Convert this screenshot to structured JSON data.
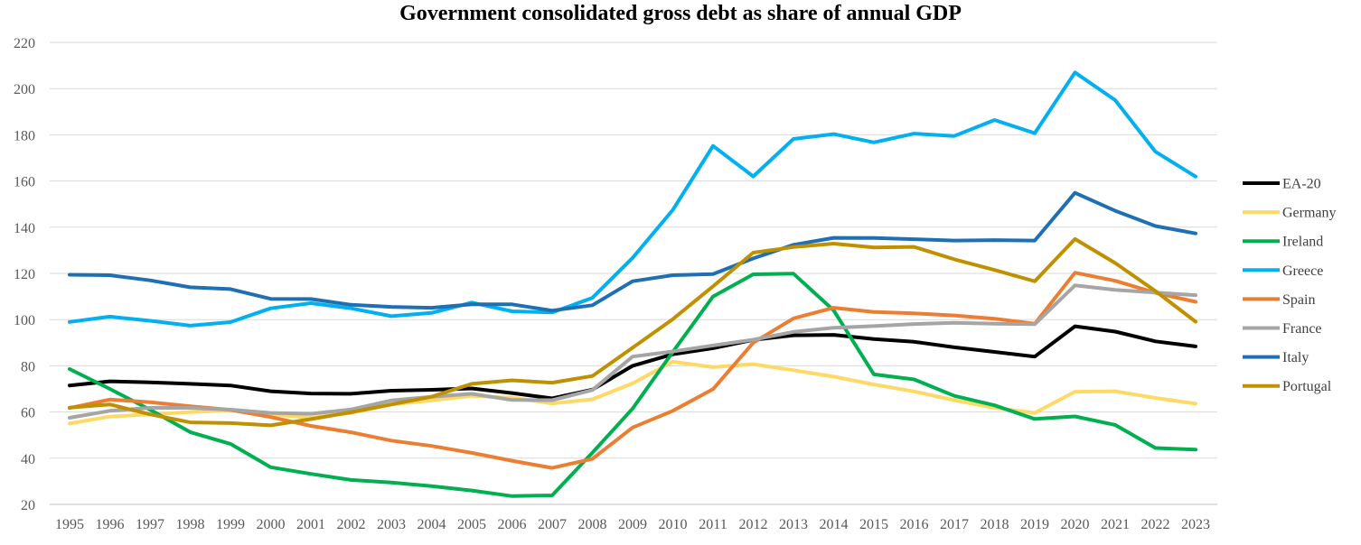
{
  "chart_data": {
    "type": "line",
    "title": "Government consolidated gross debt as share of annual GDP",
    "xlabel": "",
    "ylabel": "",
    "ylim": [
      20,
      220
    ],
    "yticks": [
      20,
      40,
      60,
      80,
      100,
      120,
      140,
      160,
      180,
      200,
      220
    ],
    "grid": true,
    "legend_position": "right",
    "x": [
      "1995",
      "1996",
      "1997",
      "1998",
      "1999",
      "2000",
      "2001",
      "2002",
      "2003",
      "2004",
      "2005",
      "2006",
      "2007",
      "2008",
      "2009",
      "2010",
      "2011",
      "2012",
      "2013",
      "2014",
      "2015",
      "2016",
      "2017",
      "2018",
      "2019",
      "2020",
      "2021",
      "2022",
      "2023"
    ],
    "series": [
      {
        "name": "EA-20",
        "color": "#000000",
        "values": [
          71.5,
          73.3,
          72.8,
          72.2,
          71.5,
          69.0,
          68.0,
          67.9,
          69.2,
          69.6,
          70.2,
          68.2,
          65.9,
          69.7,
          80.0,
          85.0,
          87.6,
          91.2,
          93.2,
          93.4,
          91.6,
          90.4,
          88.0,
          86.0,
          84.0,
          97.1,
          94.8,
          90.6,
          88.4
        ]
      },
      {
        "name": "Germany",
        "color": "#FFD966",
        "values": [
          55.0,
          58.0,
          59.0,
          60.0,
          60.8,
          59.0,
          57.5,
          59.6,
          63.2,
          65.0,
          67.0,
          66.2,
          63.7,
          65.5,
          72.4,
          81.8,
          79.4,
          80.7,
          78.1,
          75.3,
          71.9,
          68.9,
          65.1,
          61.8,
          59.6,
          68.8,
          69.0,
          66.1,
          63.6
        ]
      },
      {
        "name": "Ireland",
        "color": "#00B050",
        "values": [
          78.6,
          70.0,
          61.0,
          51.3,
          46.2,
          36.1,
          33.2,
          30.6,
          29.5,
          27.9,
          26.0,
          23.6,
          23.9,
          42.4,
          61.5,
          86.0,
          110.0,
          119.6,
          119.9,
          104.0,
          76.3,
          74.1,
          67.0,
          62.9,
          57.0,
          58.1,
          54.4,
          44.4,
          43.7
        ]
      },
      {
        "name": "Greece",
        "color": "#00B0F0",
        "values": [
          99.0,
          101.3,
          99.5,
          97.4,
          98.9,
          104.9,
          107.1,
          104.9,
          101.5,
          102.9,
          107.4,
          103.6,
          103.1,
          109.4,
          126.7,
          147.5,
          175.2,
          162.0,
          178.2,
          180.3,
          176.7,
          180.5,
          179.5,
          186.4,
          180.7,
          207.0,
          195.0,
          172.7,
          161.9
        ]
      },
      {
        "name": "Spain",
        "color": "#ED7D31",
        "values": [
          61.7,
          65.4,
          64.2,
          62.5,
          60.9,
          57.8,
          54.0,
          51.2,
          47.6,
          45.3,
          42.3,
          38.9,
          35.8,
          39.7,
          53.3,
          60.5,
          69.9,
          90.0,
          100.5,
          105.1,
          103.3,
          102.7,
          101.8,
          100.4,
          98.2,
          120.3,
          116.8,
          111.6,
          107.7
        ]
      },
      {
        "name": "France",
        "color": "#A5A5A5",
        "values": [
          57.5,
          60.5,
          61.8,
          61.8,
          61.0,
          59.6,
          59.2,
          61.1,
          65.0,
          66.6,
          67.9,
          65.2,
          65.1,
          69.5,
          84.0,
          86.2,
          88.8,
          91.3,
          94.7,
          96.5,
          97.2,
          98.1,
          98.6,
          98.2,
          98.0,
          114.8,
          112.9,
          111.7,
          110.6
        ]
      },
      {
        "name": "Italy",
        "color": "#1F6FB5",
        "values": [
          119.4,
          119.2,
          117.0,
          114.0,
          113.2,
          109.0,
          108.9,
          106.4,
          105.5,
          105.1,
          106.6,
          106.6,
          103.9,
          106.2,
          116.6,
          119.2,
          119.7,
          126.5,
          132.4,
          135.4,
          135.3,
          134.8,
          134.2,
          134.4,
          134.2,
          154.9,
          147.1,
          140.5,
          137.3
        ]
      },
      {
        "name": "Portugal",
        "color": "#BF9000",
        "values": [
          61.9,
          63.3,
          59.0,
          55.5,
          55.2,
          54.2,
          56.9,
          59.9,
          63.3,
          66.6,
          72.2,
          73.7,
          72.7,
          75.6,
          87.8,
          100.2,
          114.4,
          129.0,
          131.4,
          132.9,
          131.2,
          131.5,
          126.1,
          121.5,
          116.6,
          134.9,
          124.5,
          112.4,
          99.1
        ]
      }
    ]
  }
}
